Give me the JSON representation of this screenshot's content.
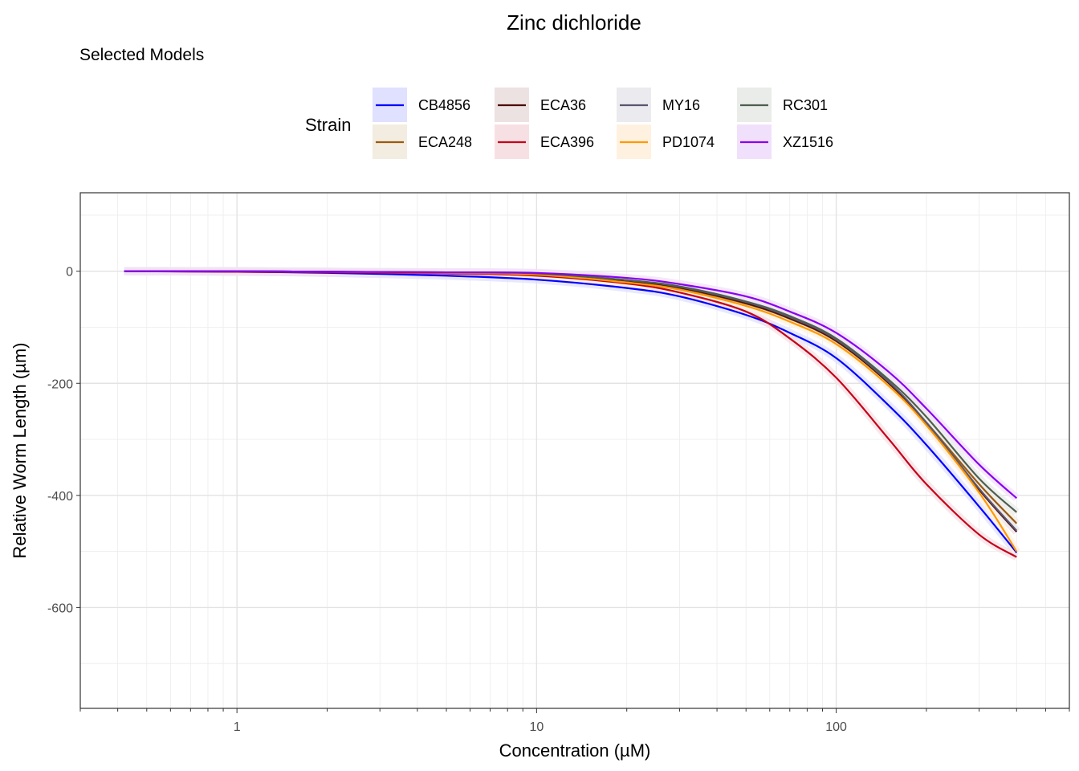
{
  "chart_data": {
    "type": "line",
    "title": "Zinc dichloride",
    "subtitle": "Selected Models",
    "xlabel": "Concentration (µM)",
    "ylabel": "Relative Worm Length (µm)",
    "x_scale": "log10",
    "xlim": [
      0.3,
      600
    ],
    "ylim": [
      -780,
      140
    ],
    "x_ticks": [
      1,
      10,
      100
    ],
    "x_tick_labels": [
      "1",
      "10",
      "100"
    ],
    "y_ticks": [
      0,
      -200,
      -400,
      -600
    ],
    "y_tick_labels": [
      "0",
      "-200",
      "-400",
      "-600"
    ],
    "grid": true,
    "legend_title": "Strain",
    "legend_position": "top",
    "x": [
      0.42,
      1,
      2,
      5,
      10,
      20,
      30,
      50,
      70,
      100,
      150,
      200,
      300,
      400
    ],
    "series": [
      {
        "name": "CB4856",
        "color": "#0000FF",
        "band_color": "#e0e0ff",
        "values": [
          0,
          -1,
          -3,
          -8,
          -15,
          -30,
          -45,
          -78,
          -110,
          -155,
          -240,
          -310,
          -420,
          -502
        ]
      },
      {
        "name": "ECA248",
        "color": "#9A5A0E",
        "band_color": "#f3ece1",
        "values": [
          0,
          0,
          -1,
          -3,
          -5,
          -18,
          -30,
          -58,
          -85,
          -125,
          -200,
          -270,
          -380,
          -450
        ]
      },
      {
        "name": "ECA36",
        "color": "#4D0A0A",
        "band_color": "#ede2e2",
        "values": [
          0,
          0,
          -1,
          -3,
          -5,
          -17,
          -29,
          -57,
          -84,
          -124,
          -200,
          -272,
          -390,
          -465
        ]
      },
      {
        "name": "ECA396",
        "color": "#C4001A",
        "band_color": "#f7e0e4",
        "values": [
          0,
          -1,
          -2,
          -4,
          -8,
          -22,
          -38,
          -72,
          -120,
          -190,
          -300,
          -380,
          -470,
          -510
        ]
      },
      {
        "name": "MY16",
        "color": "#5A5670",
        "band_color": "#ebebef",
        "values": [
          0,
          0,
          -1,
          -2,
          -4,
          -16,
          -28,
          -55,
          -82,
          -122,
          -198,
          -270,
          -388,
          -463
        ]
      },
      {
        "name": "PD1074",
        "color": "#FF9900",
        "band_color": "#fff1e0",
        "values": [
          0,
          0,
          -1,
          -3,
          -6,
          -20,
          -33,
          -62,
          -90,
          -130,
          -205,
          -275,
          -395,
          -500
        ]
      },
      {
        "name": "RC301",
        "color": "#4F5E4F",
        "band_color": "#e9ece9",
        "values": [
          0,
          0,
          -1,
          -2,
          -4,
          -16,
          -27,
          -54,
          -80,
          -120,
          -194,
          -260,
          -370,
          -430
        ]
      },
      {
        "name": "XZ1516",
        "color": "#8800EE",
        "band_color": "#f1e0fb",
        "values": [
          0,
          0,
          -1,
          -2,
          -3,
          -12,
          -23,
          -45,
          -72,
          -110,
          -180,
          -245,
          -345,
          -405
        ]
      }
    ]
  }
}
